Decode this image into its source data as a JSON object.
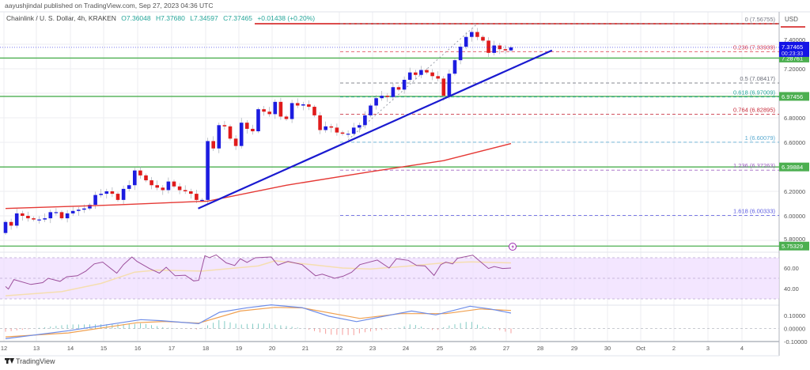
{
  "header": {
    "published": "aayushjindal published on TradingView.com, Sep 27, 2023 04:36 UTC",
    "symbol": "Chainlink / U. S. Dollar, 4h, KRAKEN",
    "open": "O7.36048",
    "high": "H7.37680",
    "low": "L7.34597",
    "close": "C7.37465",
    "change": "+0.01438 (+0.20%)"
  },
  "branding": {
    "logo_text": "TradingView"
  },
  "colors": {
    "up": "#1c1ce0",
    "down": "#e01b1b",
    "trendline": "#1a1ad0",
    "ma": "#e53935",
    "level": "#4caf50",
    "rsi": "#9c4f9c",
    "rsi_ma": "#f5deb0",
    "rsi_band": "#eedcff",
    "macd": "#6e8de8",
    "signal": "#f0a050",
    "hist_pos": "#26a69a",
    "hist_neg": "#ef5350"
  },
  "chart_data": [
    {
      "type": "candlestick",
      "title": "Chainlink / U. S. Dollar, 4h, KRAKEN",
      "currency": "USD",
      "x_tick_labels": [
        "12",
        "13",
        "14",
        "15",
        "16",
        "17",
        "18",
        "19",
        "20",
        "21",
        "22",
        "23",
        "24",
        "25",
        "26",
        "27",
        "28",
        "29",
        "30",
        "Oct",
        "2",
        "3",
        "4"
      ],
      "y_tick_labels": [
        "7.40000",
        "7.20000",
        "6.80000",
        "6.60000",
        "6.20000",
        "6.00000",
        "5.80000"
      ],
      "ylim": [
        5.72,
        7.62
      ],
      "grid": true,
      "first_open": 5.86,
      "closes": [
        5.95,
        5.92,
        6.02,
        6.0,
        5.98,
        5.97,
        5.97,
        5.98,
        6.03,
        6.03,
        5.98,
        6.02,
        6.04,
        6.05,
        6.06,
        6.09,
        6.17,
        6.18,
        6.2,
        6.18,
        6.13,
        6.22,
        6.25,
        6.37,
        6.33,
        6.29,
        6.25,
        6.23,
        6.21,
        6.28,
        6.24,
        6.21,
        6.2,
        6.18,
        6.13,
        6.13,
        6.61,
        6.55,
        6.74,
        6.73,
        6.63,
        6.57,
        6.76,
        6.71,
        6.69,
        6.87,
        6.85,
        6.83,
        6.93,
        6.81,
        6.79,
        6.92,
        6.9,
        6.91,
        6.89,
        6.82,
        6.7,
        6.73,
        6.72,
        6.68,
        6.67,
        6.67,
        6.72,
        6.74,
        6.82,
        6.9,
        6.96,
        6.98,
        6.97,
        7.05,
        7.03,
        7.11,
        7.17,
        7.15,
        7.19,
        7.17,
        7.14,
        7.12,
        6.98,
        7.16,
        7.27,
        7.38,
        7.46,
        7.5,
        7.46,
        7.43,
        7.33,
        7.39,
        7.36,
        7.35,
        7.37465
      ],
      "swing_high": 7.56755,
      "current_price": {
        "value": "7.37465",
        "countdown": "00:23:33"
      },
      "levels": [
        {
          "value": 7.28761,
          "label": "7.28761"
        },
        {
          "value": 6.97456,
          "label": "6.97456"
        },
        {
          "value": 6.39884,
          "label": "6.39884"
        },
        {
          "value": 5.75329,
          "label": "5.75329"
        }
      ],
      "fibonacci": [
        {
          "ratio": "0",
          "price": 7.56755,
          "label": "0 (7.56755)",
          "color": "#787b86"
        },
        {
          "ratio": "0.236",
          "price": 7.33939,
          "label": "0.236 (7.33939)",
          "color": "#e04050"
        },
        {
          "ratio": "0.5",
          "price": 7.08417,
          "label": "0.5 (7.08417)",
          "color": "#6a6d78"
        },
        {
          "ratio": "0.618",
          "price": 6.97009,
          "label": "0.618 (6.97009)",
          "color": "#26a69a"
        },
        {
          "ratio": "0.764",
          "price": 6.82895,
          "label": "0.764 (6.82895)",
          "color": "#c62838"
        },
        {
          "ratio": "1",
          "price": 6.60079,
          "label": "1 (6.60079)",
          "color": "#5aaad0"
        },
        {
          "ratio": "1.236",
          "price": 6.37263,
          "label": "1.236 (6.37263)",
          "color": "#9c5cc0"
        },
        {
          "ratio": "1.618",
          "price": 6.00333,
          "label": "1.618 (6.00333)",
          "color": "#5c5ce0"
        }
      ],
      "trendline": {
        "from": {
          "bar": 34.3,
          "price": 6.06
        },
        "to": {
          "bar": 97.3,
          "price": 7.35
        }
      },
      "moving_average": [
        [
          0,
          6.06
        ],
        [
          20,
          6.09
        ],
        [
          36,
          6.12
        ],
        [
          50,
          6.25
        ],
        [
          65,
          6.36
        ],
        [
          78,
          6.45
        ],
        [
          90,
          6.59
        ]
      ]
    },
    {
      "type": "line",
      "indicator": "RSI",
      "y_tick_labels": [
        "60.00",
        "40.00"
      ],
      "band": [
        30,
        70
      ],
      "rsi": [
        [
          0,
          42
        ],
        [
          0.5,
          39.5
        ],
        [
          1.5,
          48.8
        ],
        [
          4.5,
          44
        ],
        [
          6.6,
          45.8
        ],
        [
          7.6,
          50
        ],
        [
          9.7,
          47
        ],
        [
          10.9,
          51.5
        ],
        [
          12.8,
          52.5
        ],
        [
          14.3,
          57
        ],
        [
          15.8,
          64
        ],
        [
          17.3,
          65.8
        ],
        [
          19.8,
          55
        ],
        [
          21,
          63.3
        ],
        [
          22.5,
          70.8
        ],
        [
          23.4,
          66.5
        ],
        [
          25.6,
          59.5
        ],
        [
          27.4,
          55
        ],
        [
          28.6,
          60.8
        ],
        [
          30.2,
          52.5
        ],
        [
          32,
          53
        ],
        [
          33.5,
          47.5
        ],
        [
          34.4,
          48
        ],
        [
          35.5,
          72
        ],
        [
          36.3,
          70
        ],
        [
          37.5,
          72.8
        ],
        [
          39.3,
          65
        ],
        [
          40.8,
          62.5
        ],
        [
          41.8,
          69
        ],
        [
          43,
          65.5
        ],
        [
          44.5,
          70
        ],
        [
          47.3,
          70.8
        ],
        [
          48.5,
          62.8
        ],
        [
          50.3,
          66.5
        ],
        [
          52.8,
          63.3
        ],
        [
          55.2,
          52.5
        ],
        [
          56.4,
          54
        ],
        [
          58.6,
          50
        ],
        [
          60.1,
          52
        ],
        [
          61.6,
          55.8
        ],
        [
          63.1,
          63.3
        ],
        [
          66.2,
          67.8
        ],
        [
          68.3,
          60
        ],
        [
          69.6,
          69
        ],
        [
          71.7,
          67.5
        ],
        [
          73.2,
          62.5
        ],
        [
          74.7,
          62
        ],
        [
          76.3,
          52.8
        ],
        [
          77.5,
          63.3
        ],
        [
          78.4,
          65.8
        ],
        [
          79.6,
          64
        ],
        [
          80.5,
          69.5
        ],
        [
          83.2,
          72.5
        ],
        [
          84.5,
          66.5
        ],
        [
          86,
          59.5
        ],
        [
          87,
          61.5
        ],
        [
          88.5,
          59.5
        ],
        [
          90,
          60
        ]
      ],
      "rsi_ma": [
        [
          0,
          33
        ],
        [
          10,
          37
        ],
        [
          17,
          45
        ],
        [
          23,
          56
        ],
        [
          27,
          58
        ],
        [
          35,
          57
        ],
        [
          45,
          62
        ],
        [
          48,
          67
        ],
        [
          55,
          63
        ],
        [
          60,
          60
        ],
        [
          65,
          59
        ],
        [
          72,
          62
        ],
        [
          78,
          65
        ],
        [
          83,
          66
        ],
        [
          90,
          65
        ]
      ]
    },
    {
      "type": "line",
      "indicator": "MACD",
      "y_tick_labels": [
        "0.10000",
        "0.00000",
        "-0.10000"
      ],
      "macd": [
        [
          0,
          -0.078
        ],
        [
          11.2,
          -0.017
        ],
        [
          17.3,
          0.023
        ],
        [
          24.1,
          0.068
        ],
        [
          27.7,
          0.06
        ],
        [
          34.4,
          0.037
        ],
        [
          38.1,
          0.124
        ],
        [
          43,
          0.159
        ],
        [
          47.3,
          0.181
        ],
        [
          52.8,
          0.16
        ],
        [
          57.6,
          0.094
        ],
        [
          62.5,
          0.053
        ],
        [
          67.4,
          0.094
        ],
        [
          72.3,
          0.134
        ],
        [
          76.6,
          0.104
        ],
        [
          82.7,
          0.171
        ],
        [
          86.3,
          0.15
        ],
        [
          90,
          0.118
        ]
      ],
      "signal": [
        [
          0,
          -0.064
        ],
        [
          11.2,
          -0.034
        ],
        [
          23.4,
          0.044
        ],
        [
          28.3,
          0.054
        ],
        [
          34.4,
          0.041
        ],
        [
          41.8,
          0.134
        ],
        [
          47.9,
          0.162
        ],
        [
          52.8,
          0.158
        ],
        [
          63.1,
          0.077
        ],
        [
          70.4,
          0.114
        ],
        [
          78.4,
          0.114
        ],
        [
          84.5,
          0.15
        ],
        [
          90,
          0.138
        ]
      ]
    }
  ]
}
